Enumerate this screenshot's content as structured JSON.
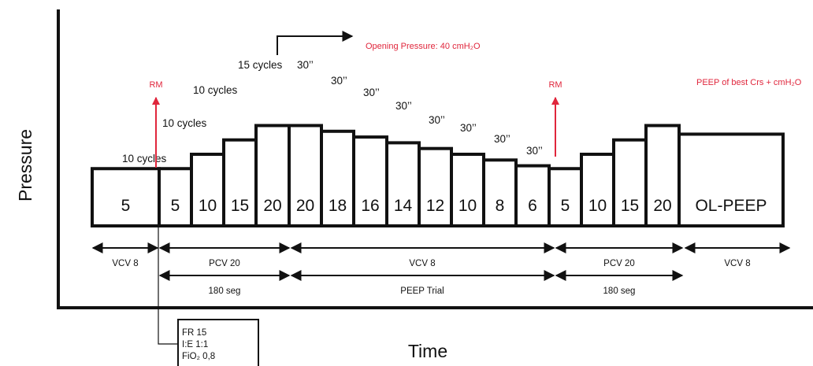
{
  "axis": {
    "y_title": "Pressure",
    "x_title": "Time"
  },
  "steps": [
    {
      "label": "5",
      "level": 5
    },
    {
      "label": "5",
      "level": 5
    },
    {
      "label": "10",
      "level": 10
    },
    {
      "label": "15",
      "level": 15
    },
    {
      "label": "20",
      "level": 20
    },
    {
      "label": "20",
      "level": 20
    },
    {
      "label": "18",
      "level": 18
    },
    {
      "label": "16",
      "level": 16
    },
    {
      "label": "14",
      "level": 14
    },
    {
      "label": "12",
      "level": 12
    },
    {
      "label": "10",
      "level": 10
    },
    {
      "label": "8",
      "level": 8
    },
    {
      "label": "6",
      "level": 6
    },
    {
      "label": "5",
      "level": 5
    },
    {
      "label": "10",
      "level": 10
    },
    {
      "label": "15",
      "level": 15
    },
    {
      "label": "20",
      "level": 20
    },
    {
      "label": "OL-PEEP",
      "level": 17
    }
  ],
  "cycle_labels": [
    "10 cycles",
    "10 cycles",
    "10 cycles",
    "15 cycles"
  ],
  "trial_labels": [
    "30’’",
    "30’’",
    "30’’",
    "30’’",
    "30’’",
    "30’’",
    "30’’",
    "30’’"
  ],
  "rm_label_1": "RM",
  "rm_label_2": "RM",
  "opening_pressure": "Opening Pressure: 40 cmH₂O",
  "best_peep": "PEEP of best Crs + cmH₂O",
  "segments_row1": [
    "VCV 8",
    "PCV 20",
    "VCV 8",
    "PCV 20",
    "VCV 8"
  ],
  "segments_row2": [
    "180 seg",
    "PEEP Trial",
    "180 seg"
  ],
  "settings": {
    "fr": "FR 15",
    "ie": "I:E 1:1",
    "fio2": "FiO₂ 0,8"
  },
  "colors": {
    "accent": "#e0263c",
    "ink": "#111111"
  }
}
